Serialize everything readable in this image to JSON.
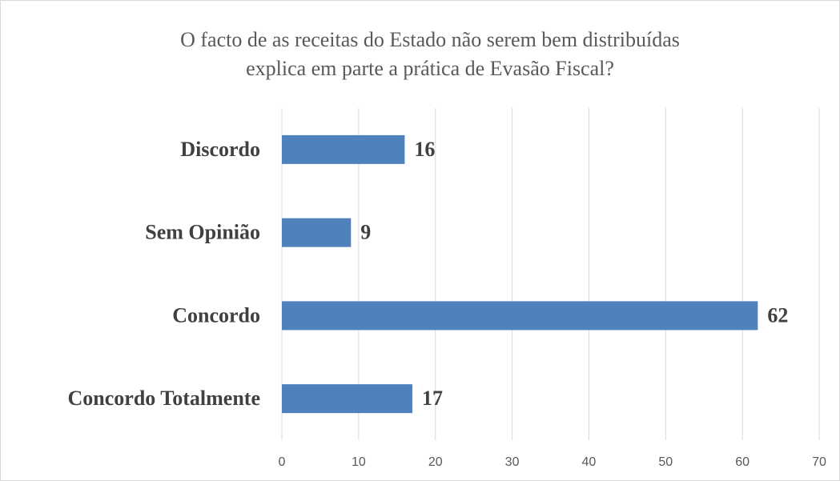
{
  "chart_data": {
    "type": "bar",
    "orientation": "horizontal",
    "title": [
      "O facto de as receitas do Estado não serem bem distribuídas",
      "explica em parte a prática de Evasão Fiscal?"
    ],
    "categories": [
      "Discordo",
      "Sem Opinião",
      "Concordo",
      "Concordo Totalmente"
    ],
    "values": [
      16,
      9,
      62,
      17
    ],
    "color": "#4f81bd",
    "xlim": [
      0,
      70
    ],
    "xticks": [
      0,
      10,
      20,
      30,
      40,
      50,
      60,
      70
    ],
    "grid": true
  }
}
